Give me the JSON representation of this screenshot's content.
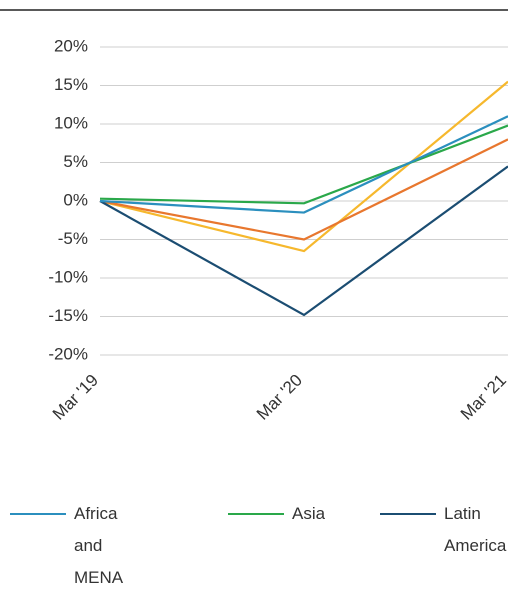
{
  "chart_data": {
    "type": "line",
    "categories": [
      "Mar '19",
      "Mar '20",
      "Mar '21"
    ],
    "series": [
      {
        "name": "Africa and MENA",
        "color": "#2b8fbe",
        "values": [
          0,
          -1.5,
          11
        ]
      },
      {
        "name": "Asia",
        "color": "#2aa84a",
        "values": [
          0.3,
          -0.3,
          9.8
        ]
      },
      {
        "name": "Latin America",
        "color": "#1b4d72",
        "values": [
          0,
          -14.8,
          4.5
        ]
      },
      {
        "color": "#e8772e",
        "values": [
          0,
          -5,
          8
        ]
      },
      {
        "color": "#f6b82d",
        "values": [
          0,
          -6.5,
          15.5
        ]
      }
    ],
    "ylim": [
      -20,
      20
    ],
    "yticks": [
      {
        "value": 20,
        "label": "20%"
      },
      {
        "value": 15,
        "label": "15%"
      },
      {
        "value": 10,
        "label": "10%"
      },
      {
        "value": 5,
        "label": "5%"
      },
      {
        "value": 0,
        "label": "0%"
      },
      {
        "value": -5,
        "label": "-5%"
      },
      {
        "value": -10,
        "label": "-10%"
      },
      {
        "value": -15,
        "label": "-15%"
      },
      {
        "value": -20,
        "label": "-20%"
      }
    ],
    "grid": true
  }
}
